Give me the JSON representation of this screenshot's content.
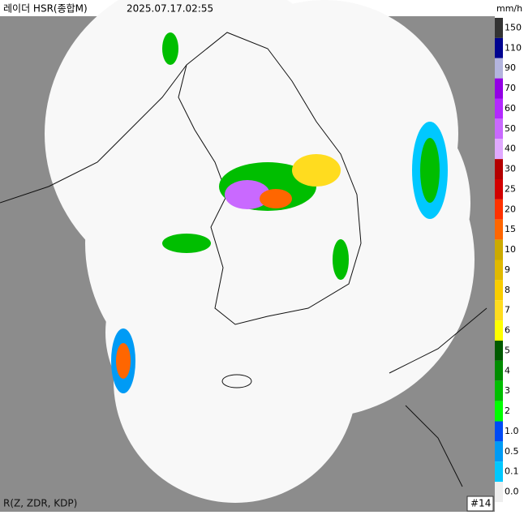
{
  "header": {
    "title": "레이더 HSR(종합M)",
    "time": "2025.07.17.02:55",
    "unit": "mm/h"
  },
  "footer": {
    "method": "R(Z, ZDR, KDP)",
    "frame": "#14"
  },
  "legend": {
    "items": [
      {
        "label": "150",
        "color": "#333333"
      },
      {
        "label": "110",
        "color": "#000390"
      },
      {
        "label": "90",
        "color": "#b3b4de"
      },
      {
        "label": "70",
        "color": "#9300e4"
      },
      {
        "label": "60",
        "color": "#b329ff"
      },
      {
        "label": "50",
        "color": "#c969ff"
      },
      {
        "label": "40",
        "color": "#e0a9ff"
      },
      {
        "label": "30",
        "color": "#b40000"
      },
      {
        "label": "25",
        "color": "#d20000"
      },
      {
        "label": "20",
        "color": "#ff3200"
      },
      {
        "label": "15",
        "color": "#ff6600"
      },
      {
        "label": "10",
        "color": "#ccaa00"
      },
      {
        "label": "9",
        "color": "#e0b900"
      },
      {
        "label": "8",
        "color": "#f9cd00"
      },
      {
        "label": "7",
        "color": "#ffdc1f"
      },
      {
        "label": "6",
        "color": "#ffff00"
      },
      {
        "label": "5",
        "color": "#005a00"
      },
      {
        "label": "4",
        "color": "#008c00"
      },
      {
        "label": "3",
        "color": "#00be00"
      },
      {
        "label": "2",
        "color": "#00ff00"
      },
      {
        "label": "1.0",
        "color": "#004af5"
      },
      {
        "label": "0.5",
        "color": "#009bf5"
      },
      {
        "label": "0.1",
        "color": "#00c8ff"
      },
      {
        "label": "0.0",
        "color": "#eeeeee"
      }
    ]
  }
}
